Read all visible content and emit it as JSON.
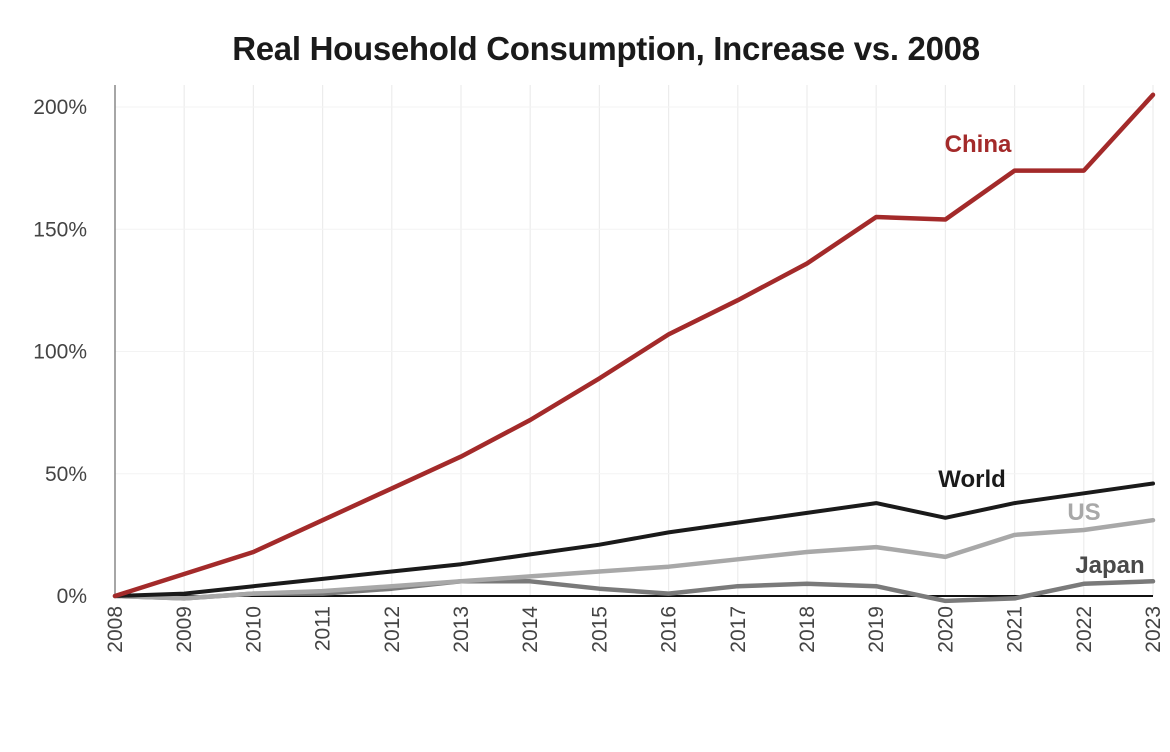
{
  "chart_data": {
    "type": "line",
    "title": "Real Household Consumption, Increase vs. 2008",
    "xlabel": "",
    "ylabel": "",
    "x": [
      "2008",
      "2009",
      "2010",
      "2011",
      "2012",
      "2013",
      "2014",
      "2015",
      "2016",
      "2017",
      "2018",
      "2019",
      "2020",
      "2021",
      "2022",
      "2023"
    ],
    "ylim": [
      0,
      210
    ],
    "yticks": [
      0,
      50,
      100,
      150,
      200
    ],
    "ytick_labels": [
      "0%",
      "50%",
      "100%",
      "150%",
      "200%"
    ],
    "grid": "vertical",
    "series": [
      {
        "name": "China",
        "color": "#a32a2a",
        "values": [
          0,
          9,
          18,
          31,
          44,
          57,
          72,
          89,
          107,
          121,
          136,
          155,
          154,
          174,
          174,
          205
        ]
      },
      {
        "name": "World",
        "color": "#1a1a1a",
        "values": [
          0,
          1,
          4,
          7,
          10,
          13,
          17,
          21,
          26,
          30,
          34,
          38,
          32,
          38,
          42,
          46
        ]
      },
      {
        "name": "US",
        "color": "#a8a8a8",
        "values": [
          0,
          -1,
          1,
          2,
          4,
          6,
          8,
          10,
          12,
          15,
          18,
          20,
          16,
          25,
          27,
          31
        ]
      },
      {
        "name": "Japan",
        "color": "#7a7a7a",
        "values": [
          0,
          -1,
          1,
          1,
          3,
          6,
          6,
          3,
          1,
          4,
          5,
          4,
          -2,
          -1,
          5,
          6
        ]
      }
    ]
  }
}
